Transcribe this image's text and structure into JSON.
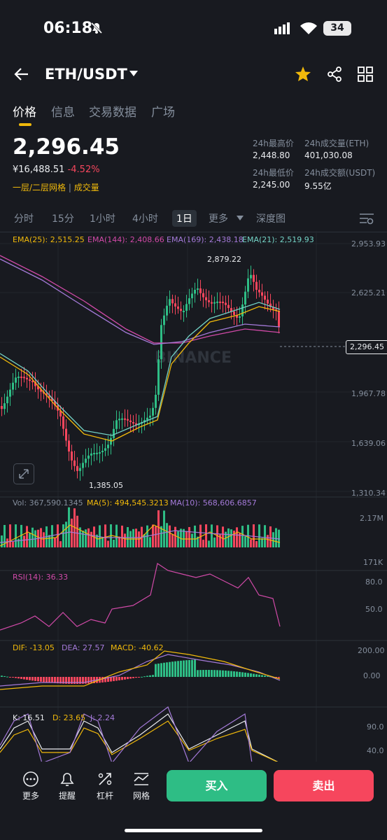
{
  "status": {
    "time": "06:18",
    "battery": "34"
  },
  "header": {
    "pair": "ETH/USDT"
  },
  "tabs": [
    "价格",
    "信息",
    "交易数据",
    "广场"
  ],
  "ticker": {
    "price": "2,296.45",
    "cny": "¥16,488.51",
    "change": "-4.52%",
    "orderbook": "一层/二层网格",
    "volume_link": "成交量",
    "high_label": "24h最高价",
    "high": "2,448.80",
    "vol_eth_label": "24h成交量(ETH)",
    "vol_eth": "401,030.08",
    "low_label": "24h最低价",
    "low": "2,245.00",
    "vol_usdt_label": "24h成交额(USDT)",
    "vol_usdt": "9.55亿"
  },
  "timeframes": [
    "分时",
    "15分",
    "1小时",
    "4小时",
    "1日",
    "更多",
    "深度图"
  ],
  "ema": {
    "ema25": "EMA(25): 2,515.25",
    "ema144": "EMA(144): 2,408.66",
    "ema169": "EMA(169): 2,438.18",
    "ema21": "EMA(21): 2,519.93"
  },
  "price_axis": [
    "2,953.93",
    "2,625.21",
    "1,967.78",
    "1,639.06",
    "1,310.34"
  ],
  "price_marks": {
    "high": "2,879.22",
    "low": "1,385.05",
    "last": "2,296.45"
  },
  "watermark": "BINANCE",
  "vol": {
    "vol": "Vol: 367,590.1345",
    "ma5": "MA(5): 494,545.3213",
    "ma10": "MA(10): 568,606.6857",
    "axis_top": "2.17M",
    "axis_bottom": "171K"
  },
  "rsi": {
    "label": "RSI(14): 36.33",
    "axis_top": "80.0",
    "axis_bottom": "50.0"
  },
  "macd": {
    "dif": "DIF: -13.05",
    "dea": "DEA: 27.57",
    "macd": "MACD: -40.62",
    "axis_top": "200.00",
    "axis_bottom": "0.00"
  },
  "kdj": {
    "k": "K: 16.51",
    "d": "D: 23.65",
    "j": "J: 2.24",
    "axis_top": "90.0",
    "axis_bottom": "40.0"
  },
  "bottom": {
    "more": "更多",
    "alert": "提醒",
    "leverage": "杠杆",
    "grid": "网格",
    "buy": "买入",
    "sell": "卖出"
  },
  "colors": {
    "up": "#2ebd85",
    "down": "#f6465d",
    "accent": "#f0b90b",
    "ema25": "#f0b90b",
    "ema144": "#d14aa8",
    "ema169": "#a47ad8",
    "ema21": "#74d3c6"
  }
}
